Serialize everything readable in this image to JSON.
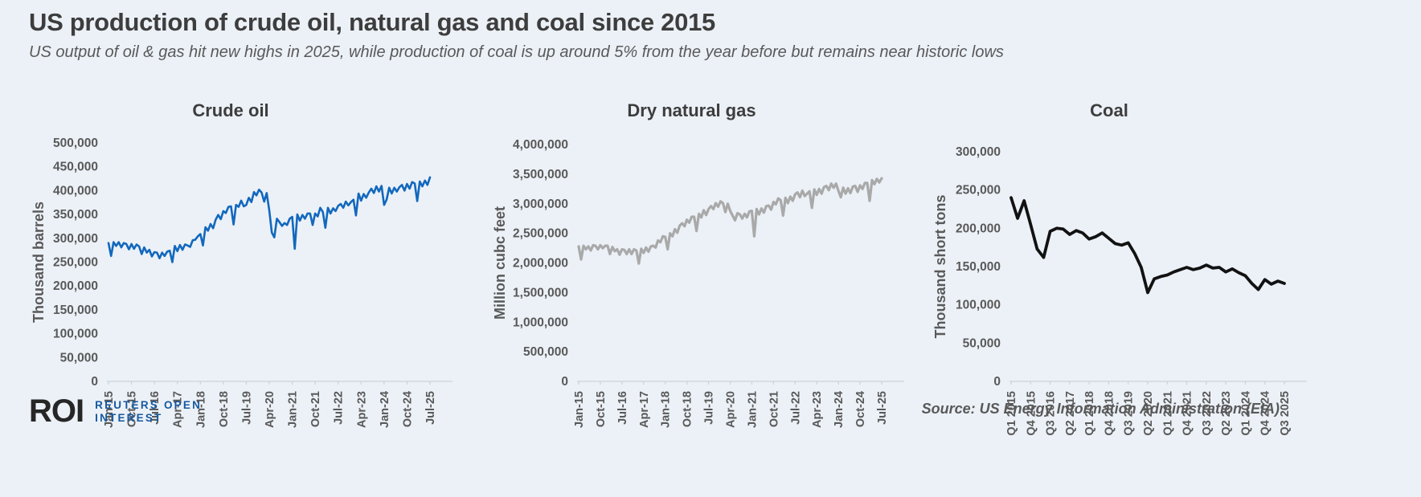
{
  "header": {
    "title": "US production of crude oil, natural gas and coal since 2015",
    "subtitle": "US output of oil & gas hit new highs in 2025, while production of coal is up around 5% from the year before but remains near historic lows"
  },
  "footer": {
    "logo_text": "ROI",
    "logo_brand_line1": "REUTERS OPEN",
    "logo_brand_line2": "INTEREST",
    "source": "Source:  US Energy Information Administration (EIA)"
  },
  "colors": {
    "background": "#ecf1f7",
    "crude_line": "#1268bd",
    "gas_line": "#a9a9a9",
    "coal_line": "#121212",
    "brand_blue": "#15599f",
    "title_text": "#3d3d3d",
    "axis_text": "#595959",
    "baseline": "#ccd2d9"
  },
  "chart_data": [
    {
      "type": "line",
      "title": "Crude oil",
      "ylabel": "Thousand barrels",
      "unit": "thousand barrels per month",
      "frequency": "monthly",
      "x_start": "Jan-15",
      "x_end": "Jul-25",
      "ylim": [
        0,
        500000
      ],
      "ytick_step": 50000,
      "grid": false,
      "legend": "none",
      "line_color": "#1268bd",
      "x_tick_labels": [
        "Jan-15",
        "Oct-15",
        "Jul-16",
        "Apr-17",
        "Jan-18",
        "Oct-18",
        "Jul-19",
        "Apr-20",
        "Jan-21",
        "Oct-21",
        "Jul-22",
        "Apr-23",
        "Jan-24",
        "Oct-24",
        "Jul-25"
      ],
      "values": [
        290000,
        263000,
        292000,
        284000,
        292000,
        281000,
        290000,
        288000,
        277000,
        288000,
        278000,
        287000,
        283000,
        267000,
        281000,
        270000,
        276000,
        262000,
        271000,
        270000,
        258000,
        270000,
        263000,
        272000,
        274000,
        250000,
        284000,
        273000,
        286000,
        276000,
        287000,
        285000,
        282000,
        296000,
        297000,
        304000,
        309000,
        285000,
        323000,
        316000,
        330000,
        321000,
        339000,
        349000,
        340000,
        357000,
        353000,
        366000,
        367000,
        329000,
        370000,
        366000,
        379000,
        367000,
        370000,
        385000,
        376000,
        397000,
        390000,
        402000,
        396000,
        377000,
        395000,
        359000,
        312000,
        302000,
        341000,
        334000,
        326000,
        332000,
        328000,
        341000,
        345000,
        278000,
        350000,
        337000,
        349000,
        341000,
        352000,
        352000,
        328000,
        352000,
        346000,
        364000,
        355000,
        322000,
        364000,
        352000,
        363000,
        357000,
        368000,
        372000,
        364000,
        377000,
        369000,
        376000,
        381000,
        348000,
        394000,
        379000,
        393000,
        385000,
        396000,
        404000,
        395000,
        409000,
        398000,
        410000,
        370000,
        381000,
        406000,
        394000,
        406000,
        398000,
        407000,
        412000,
        400000,
        414000,
        404000,
        418000,
        415000,
        378000,
        419000,
        409000,
        421000,
        412000,
        428000
      ]
    },
    {
      "type": "line",
      "title": "Dry natural gas",
      "ylabel": "Million cubc feet",
      "unit": "million cubic feet per month",
      "frequency": "monthly",
      "x_start": "Jan-15",
      "x_end": "Jul-25",
      "ylim": [
        0,
        4000000
      ],
      "ytick_step": 500000,
      "grid": false,
      "legend": "none",
      "line_color": "#a9a9a9",
      "x_tick_labels": [
        "Jan-15",
        "Oct-15",
        "Jul-16",
        "Apr-17",
        "Jan-18",
        "Oct-18",
        "Jul-19",
        "Apr-20",
        "Jan-21",
        "Oct-21",
        "Jul-22",
        "Apr-23",
        "Jan-24",
        "Oct-24",
        "Jul-25"
      ],
      "values": [
        2280000,
        2060000,
        2290000,
        2230000,
        2280000,
        2210000,
        2300000,
        2290000,
        2230000,
        2300000,
        2250000,
        2290000,
        2290000,
        2150000,
        2270000,
        2200000,
        2230000,
        2140000,
        2230000,
        2220000,
        2150000,
        2230000,
        2150000,
        2230000,
        2210000,
        1990000,
        2240000,
        2170000,
        2260000,
        2190000,
        2280000,
        2290000,
        2260000,
        2380000,
        2350000,
        2450000,
        2440000,
        2230000,
        2500000,
        2450000,
        2570000,
        2510000,
        2630000,
        2670000,
        2620000,
        2730000,
        2680000,
        2780000,
        2780000,
        2540000,
        2830000,
        2770000,
        2890000,
        2810000,
        2910000,
        2960000,
        2910000,
        3010000,
        2950000,
        3040000,
        3010000,
        2860000,
        3000000,
        2880000,
        2800000,
        2720000,
        2840000,
        2820000,
        2750000,
        2830000,
        2770000,
        2870000,
        2880000,
        2450000,
        2910000,
        2820000,
        2920000,
        2850000,
        2960000,
        2970000,
        2900000,
        3030000,
        2990000,
        3090000,
        3060000,
        2800000,
        3100000,
        3010000,
        3120000,
        3050000,
        3160000,
        3190000,
        3110000,
        3220000,
        3130000,
        3170000,
        3210000,
        2930000,
        3240000,
        3150000,
        3250000,
        3170000,
        3280000,
        3300000,
        3230000,
        3340000,
        3270000,
        3340000,
        3220000,
        3110000,
        3270000,
        3170000,
        3260000,
        3180000,
        3290000,
        3300000,
        3200000,
        3310000,
        3250000,
        3350000,
        3350000,
        3050000,
        3400000,
        3330000,
        3420000,
        3360000,
        3430000
      ]
    },
    {
      "type": "line",
      "title": "Coal",
      "ylabel": "Thousand short tons",
      "unit": "thousand short tons per quarter",
      "frequency": "quarterly",
      "x_start": "Q1 2015",
      "x_end": "Q3 2025",
      "ylim": [
        0,
        300000
      ],
      "ytick_step": 50000,
      "grid": false,
      "legend": "none",
      "line_color": "#121212",
      "x_tick_labels": [
        "Q1 2015",
        "Q4 2015",
        "Q3 2016",
        "Q2 2017",
        "Q1 2018",
        "Q4 2018",
        "Q3 2019",
        "Q2 2020",
        "Q1 2021",
        "Q4 2021",
        "Q3 2022",
        "Q2 2023",
        "Q1 2024",
        "Q4 2024",
        "Q3 2025"
      ],
      "values": [
        240000,
        213000,
        236000,
        205000,
        173000,
        162000,
        196000,
        200000,
        199000,
        192000,
        197000,
        194000,
        186000,
        189000,
        194000,
        187000,
        180000,
        178000,
        181000,
        167000,
        149000,
        116000,
        134000,
        137000,
        139000,
        143000,
        146000,
        149000,
        146000,
        148000,
        152000,
        148000,
        149000,
        143000,
        147000,
        142000,
        138000,
        128000,
        120000,
        133000,
        127000,
        131000,
        128000
      ]
    }
  ]
}
